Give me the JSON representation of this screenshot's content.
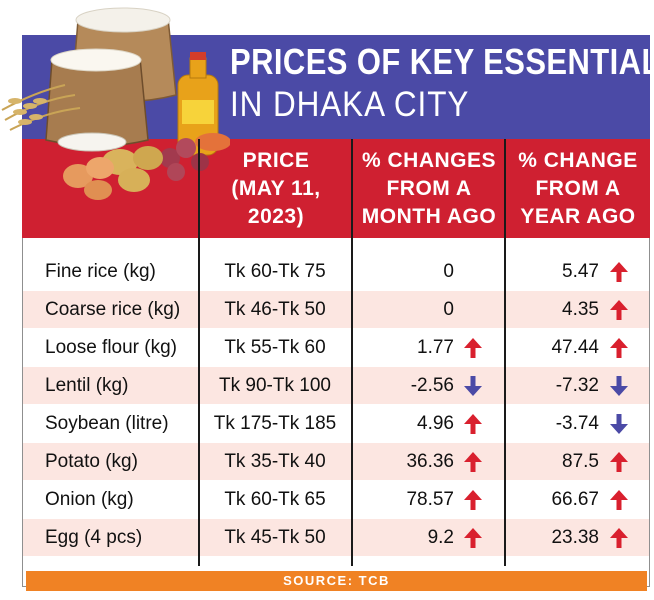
{
  "title": {
    "line1": "PRICES OF KEY ESSENTIALS",
    "line2": "IN DHAKA CITY"
  },
  "headers": {
    "price": [
      "PRICE",
      "(MAY 11,",
      "2023)"
    ],
    "month": [
      "% CHANGES",
      "FROM A",
      "MONTH AGO"
    ],
    "year": [
      "% CHANGE",
      "FROM A",
      "YEAR AGO"
    ]
  },
  "rows": [
    {
      "item": "Fine rice (kg)",
      "price": "Tk 60-Tk 75",
      "month": "0",
      "month_dir": "none",
      "year": "5.47",
      "year_dir": "up"
    },
    {
      "item": "Coarse rice (kg)",
      "price": "Tk 46-Tk 50",
      "month": "0",
      "month_dir": "none",
      "year": "4.35",
      "year_dir": "up"
    },
    {
      "item": "Loose flour (kg)",
      "price": "Tk 55-Tk 60",
      "month": "1.77",
      "month_dir": "up",
      "year": "47.44",
      "year_dir": "up"
    },
    {
      "item": "Lentil (kg)",
      "price": "Tk 90-Tk 100",
      "month": "-2.56",
      "month_dir": "down",
      "year": "-7.32",
      "year_dir": "down"
    },
    {
      "item": "Soybean (litre)",
      "price": "Tk 175-Tk 185",
      "month": "4.96",
      "month_dir": "up",
      "year": "-3.74",
      "year_dir": "down"
    },
    {
      "item": "Potato (kg)",
      "price": "Tk 35-Tk 40",
      "month": "36.36",
      "month_dir": "up",
      "year": "87.5",
      "year_dir": "up"
    },
    {
      "item": "Onion (kg)",
      "price": "Tk 60-Tk 65",
      "month": "78.57",
      "month_dir": "up",
      "year": "66.67",
      "year_dir": "up"
    },
    {
      "item": "Egg (4 pcs)",
      "price": "Tk 45-Tk 50",
      "month": "9.2",
      "month_dir": "up",
      "year": "23.38",
      "year_dir": "up"
    }
  ],
  "source": "SOURCE: TCB",
  "colors": {
    "title_band": "#4b4aa6",
    "header_band": "#cf2031",
    "row_shade": "#fce6e1",
    "arrow_up": "#d9202e",
    "arrow_down": "#4b4aa6",
    "source_bar": "#f08224"
  }
}
